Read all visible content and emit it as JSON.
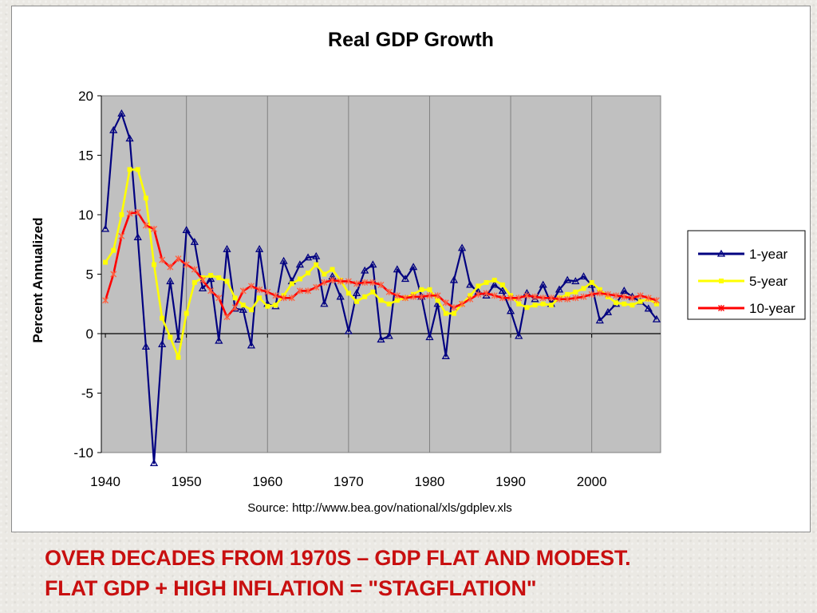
{
  "chart_data": {
    "type": "line",
    "title": "Real GDP Growth",
    "xlabel": "",
    "ylabel": "Percent Annualized",
    "source": "Source:  http://www.bea.gov/national/xls/gdplev.xls",
    "xlim": [
      1939.5,
      2008.5
    ],
    "ylim": [
      -10,
      20
    ],
    "xticks": [
      1940,
      1950,
      1960,
      1970,
      1980,
      1990,
      2000
    ],
    "yticks": [
      20,
      15,
      10,
      5,
      0,
      -5,
      -10
    ],
    "grid": true,
    "legend": "right",
    "plot_background": "#c0c0c0",
    "series": [
      {
        "name": "1-year",
        "color": "#000080",
        "marker": "triangle",
        "x": [
          1940,
          1941,
          1942,
          1943,
          1944,
          1945,
          1946,
          1947,
          1948,
          1949,
          1950,
          1951,
          1952,
          1953,
          1954,
          1955,
          1956,
          1957,
          1958,
          1959,
          1960,
          1961,
          1962,
          1963,
          1964,
          1965,
          1966,
          1967,
          1968,
          1969,
          1970,
          1971,
          1972,
          1973,
          1974,
          1975,
          1976,
          1977,
          1978,
          1979,
          1980,
          1981,
          1982,
          1983,
          1984,
          1985,
          1986,
          1987,
          1988,
          1989,
          1990,
          1991,
          1992,
          1993,
          1994,
          1995,
          1996,
          1997,
          1998,
          1999,
          2000,
          2001,
          2002,
          2003,
          2004,
          2005,
          2006,
          2007,
          2008
        ],
        "values": [
          8.8,
          17.1,
          18.5,
          16.4,
          8.1,
          -1.1,
          -10.9,
          -0.9,
          4.4,
          -0.5,
          8.7,
          7.7,
          3.8,
          4.6,
          -0.6,
          7.1,
          2.1,
          2.0,
          -1.0,
          7.1,
          2.5,
          2.3,
          6.1,
          4.4,
          5.8,
          6.4,
          6.5,
          2.5,
          4.8,
          3.1,
          0.2,
          3.4,
          5.3,
          5.8,
          -0.5,
          -0.2,
          5.4,
          4.6,
          5.6,
          3.1,
          -0.3,
          2.5,
          -1.9,
          4.5,
          7.2,
          4.1,
          3.5,
          3.2,
          4.1,
          3.6,
          1.9,
          -0.2,
          3.4,
          2.9,
          4.1,
          2.5,
          3.7,
          4.5,
          4.4,
          4.8,
          4.1,
          1.1,
          1.8,
          2.5,
          3.6,
          3.1,
          2.7,
          2.1,
          1.2
        ]
      },
      {
        "name": "5-year",
        "color": "#ffff00",
        "marker": "square",
        "x": [
          1940,
          1941,
          1942,
          1943,
          1944,
          1945,
          1946,
          1947,
          1948,
          1949,
          1950,
          1951,
          1952,
          1953,
          1954,
          1955,
          1956,
          1957,
          1958,
          1959,
          1960,
          1961,
          1962,
          1963,
          1964,
          1965,
          1966,
          1967,
          1968,
          1969,
          1970,
          1971,
          1972,
          1973,
          1974,
          1975,
          1976,
          1977,
          1978,
          1979,
          1980,
          1981,
          1982,
          1983,
          1984,
          1985,
          1986,
          1987,
          1988,
          1989,
          1990,
          1991,
          1992,
          1993,
          1994,
          1995,
          1996,
          1997,
          1998,
          1999,
          2000,
          2001,
          2002,
          2003,
          2004,
          2005,
          2006,
          2007,
          2008
        ],
        "values": [
          6.0,
          7.0,
          10.0,
          13.8,
          13.8,
          11.4,
          5.8,
          1.3,
          -0.3,
          -2.0,
          1.7,
          4.3,
          4.7,
          4.9,
          4.7,
          4.4,
          3.0,
          2.4,
          2.0,
          3.0,
          2.3,
          2.4,
          3.2,
          4.2,
          4.6,
          5.1,
          5.8,
          5.0,
          5.4,
          4.5,
          3.4,
          2.7,
          3.1,
          3.5,
          2.8,
          2.5,
          2.8,
          3.0,
          3.3,
          3.7,
          3.7,
          2.8,
          1.7,
          1.7,
          2.5,
          3.2,
          4.0,
          4.3,
          4.5,
          4.1,
          3.2,
          2.5,
          2.2,
          2.4,
          2.5,
          2.4,
          3.0,
          3.3,
          3.5,
          3.8,
          4.3,
          3.7,
          3.1,
          2.6,
          2.5,
          2.4,
          2.7,
          2.9,
          2.5
        ]
      },
      {
        "name": "10-year",
        "color": "#ff0000",
        "marker": "star",
        "x": [
          1940,
          1941,
          1942,
          1943,
          1944,
          1945,
          1946,
          1947,
          1948,
          1949,
          1950,
          1951,
          1952,
          1953,
          1954,
          1955,
          1956,
          1957,
          1958,
          1959,
          1960,
          1961,
          1962,
          1963,
          1964,
          1965,
          1966,
          1967,
          1968,
          1969,
          1970,
          1971,
          1972,
          1973,
          1974,
          1975,
          1976,
          1977,
          1978,
          1979,
          1980,
          1981,
          1982,
          1983,
          1984,
          1985,
          1986,
          1987,
          1988,
          1989,
          1990,
          1991,
          1992,
          1993,
          1994,
          1995,
          1996,
          1997,
          1998,
          1999,
          2000,
          2001,
          2002,
          2003,
          2004,
          2005,
          2006,
          2007,
          2008
        ],
        "values": [
          2.8,
          5.0,
          8.2,
          10.1,
          10.2,
          9.1,
          8.8,
          6.2,
          5.6,
          6.3,
          5.8,
          5.4,
          4.5,
          3.6,
          3.0,
          1.4,
          2.2,
          3.6,
          4.0,
          3.7,
          3.5,
          3.2,
          3.0,
          3.0,
          3.6,
          3.6,
          3.9,
          4.3,
          4.5,
          4.4,
          4.4,
          4.2,
          4.3,
          4.3,
          4.1,
          3.5,
          3.2,
          3.0,
          3.1,
          3.1,
          3.2,
          3.2,
          2.6,
          2.2,
          2.5,
          2.9,
          3.3,
          3.4,
          3.2,
          3.0,
          3.0,
          3.0,
          3.2,
          3.1,
          3.0,
          3.0,
          2.9,
          2.9,
          3.0,
          3.1,
          3.3,
          3.4,
          3.3,
          3.2,
          3.1,
          3.0,
          3.2,
          3.0,
          2.8
        ]
      }
    ]
  },
  "caption": {
    "line1": "Over decades from 1970s – GDP flat and modest.",
    "line2": "Flat GDP + High inflation = \"stagflation\""
  }
}
